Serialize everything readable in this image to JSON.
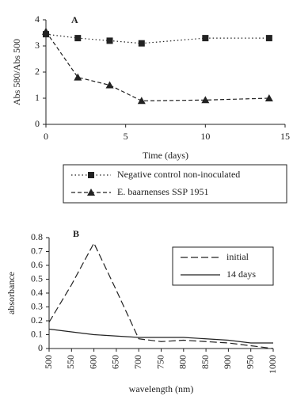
{
  "chart_data": [
    {
      "type": "line",
      "panel_label": "A",
      "x_label": "Time (days)",
      "y_label": "Abs 580/Abs 500",
      "x": [
        0,
        2,
        4,
        6,
        10,
        14
      ],
      "series": [
        {
          "name": "Negative control non-inoculated",
          "color": "#222222",
          "linestyle": "dotted",
          "marker": "square",
          "values": [
            3.45,
            3.3,
            3.2,
            3.1,
            3.3,
            3.3
          ]
        },
        {
          "name": "E. baarnenses SSP 1951",
          "color": "#222222",
          "linestyle": "dashed",
          "marker": "triangle",
          "values": [
            3.55,
            1.8,
            1.5,
            0.9,
            0.93,
            1.0
          ]
        }
      ],
      "xlim": [
        0,
        15
      ],
      "xticks": [
        0,
        5,
        10,
        15
      ],
      "ylim": [
        0,
        4
      ],
      "yticks": [
        0,
        1,
        2,
        3,
        4
      ],
      "legend_position": "below"
    },
    {
      "type": "line",
      "panel_label": "B",
      "x_label": "wavelength (nm)",
      "y_label": "absorbance",
      "x": [
        500,
        550,
        600,
        650,
        700,
        750,
        800,
        850,
        900,
        950,
        1000
      ],
      "series": [
        {
          "name": "initial",
          "color": "#222222",
          "linestyle": "longdash",
          "marker": "none",
          "values": [
            0.19,
            0.46,
            0.76,
            0.42,
            0.07,
            0.05,
            0.06,
            0.05,
            0.04,
            0.02,
            0.0
          ]
        },
        {
          "name": "14 days",
          "color": "#222222",
          "linestyle": "solid",
          "marker": "none",
          "values": [
            0.14,
            0.12,
            0.1,
            0.09,
            0.08,
            0.08,
            0.08,
            0.07,
            0.06,
            0.04,
            0.04
          ]
        }
      ],
      "xlim": [
        500,
        1000
      ],
      "xticks": [
        500,
        550,
        600,
        650,
        700,
        750,
        800,
        850,
        900,
        950,
        1000
      ],
      "xtick_rotation": -90,
      "ylim": [
        0,
        0.8
      ],
      "yticks": [
        0,
        0.1,
        0.2,
        0.3,
        0.4,
        0.5,
        0.6,
        0.7,
        0.8
      ],
      "legend_position": "upper right"
    }
  ]
}
